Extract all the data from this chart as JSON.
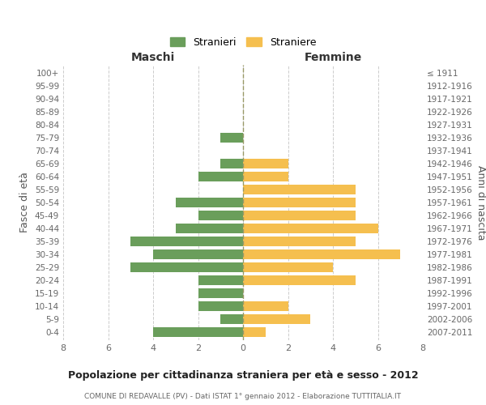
{
  "age_groups": [
    "0-4",
    "5-9",
    "10-14",
    "15-19",
    "20-24",
    "25-29",
    "30-34",
    "35-39",
    "40-44",
    "45-49",
    "50-54",
    "55-59",
    "60-64",
    "65-69",
    "70-74",
    "75-79",
    "80-84",
    "85-89",
    "90-94",
    "95-99",
    "100+"
  ],
  "birth_years": [
    "2007-2011",
    "2002-2006",
    "1997-2001",
    "1992-1996",
    "1987-1991",
    "1982-1986",
    "1977-1981",
    "1972-1976",
    "1967-1971",
    "1962-1966",
    "1957-1961",
    "1952-1956",
    "1947-1951",
    "1942-1946",
    "1937-1941",
    "1932-1936",
    "1927-1931",
    "1922-1926",
    "1917-1921",
    "1912-1916",
    "≤ 1911"
  ],
  "maschi": [
    4,
    1,
    2,
    2,
    2,
    5,
    4,
    5,
    3,
    2,
    3,
    0,
    2,
    1,
    0,
    1,
    0,
    0,
    0,
    0,
    0
  ],
  "femmine": [
    1,
    3,
    2,
    0,
    5,
    4,
    7,
    5,
    6,
    5,
    5,
    5,
    2,
    2,
    0,
    0,
    0,
    0,
    0,
    0,
    0
  ],
  "color_maschi": "#6a9e5b",
  "color_femmine": "#f5bf4f",
  "title": "Popolazione per cittadinanza straniera per età e sesso - 2012",
  "subtitle": "COMUNE DI REDAVALLE (PV) - Dati ISTAT 1° gennaio 2012 - Elaborazione TUTTITALIA.IT",
  "label_maschi": "Maschi",
  "label_femmine": "Femmine",
  "legend_stranieri": "Stranieri",
  "legend_straniere": "Straniere",
  "ylabel_left": "Fasce di età",
  "ylabel_right": "Anni di nascita",
  "xlim": 8,
  "background_color": "#ffffff",
  "grid_color": "#cccccc"
}
